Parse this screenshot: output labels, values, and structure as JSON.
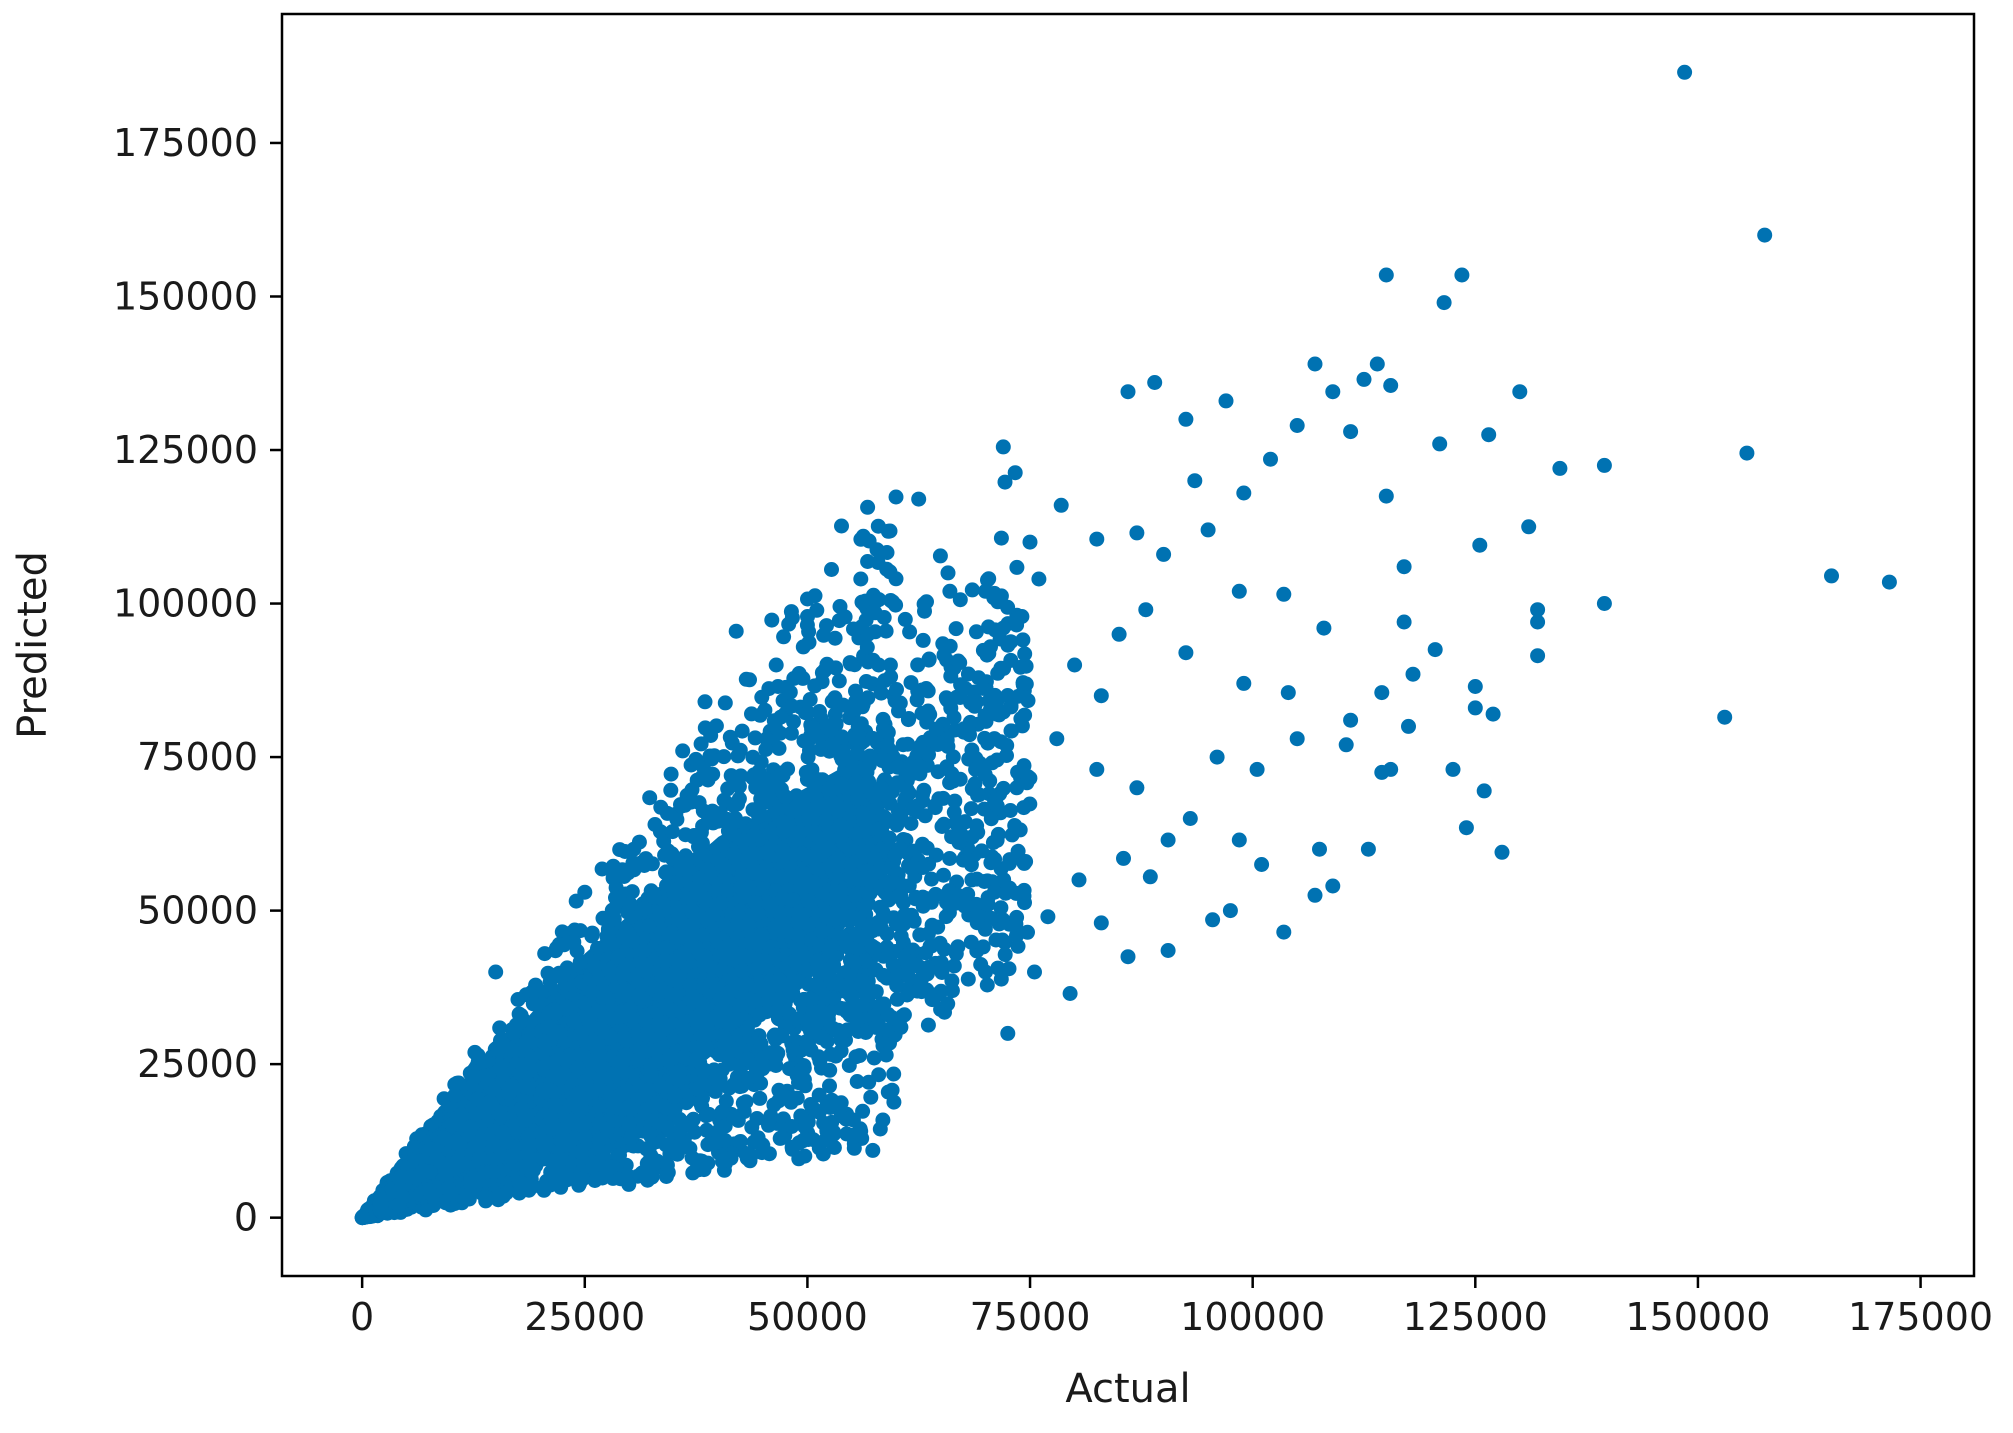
{
  "chart_data": {
    "type": "scatter",
    "title": "",
    "xlabel": "Actual",
    "ylabel": "Predicted",
    "xlim": [
      -9000,
      181000
    ],
    "ylim": [
      -9500,
      196000
    ],
    "grid": false,
    "x_ticks": [
      0,
      25000,
      50000,
      75000,
      100000,
      125000,
      150000,
      175000
    ],
    "x_tick_labels": [
      "0",
      "25000",
      "50000",
      "75000",
      "100000",
      "125000",
      "150000",
      "175000"
    ],
    "y_ticks": [
      0,
      25000,
      50000,
      75000,
      100000,
      125000,
      150000,
      175000
    ],
    "y_tick_labels": [
      "0",
      "25000",
      "50000",
      "75000",
      "100000",
      "125000",
      "150000",
      "175000"
    ],
    "series": [
      {
        "color": "#0072b2",
        "marker": "circle",
        "points": [
          [
            148500,
            186500
          ],
          [
            157500,
            160000
          ],
          [
            115000,
            153500
          ],
          [
            123500,
            153500
          ],
          [
            121500,
            149000
          ],
          [
            89000,
            136000
          ],
          [
            86000,
            134500
          ],
          [
            107000,
            139000
          ],
          [
            114000,
            139000
          ],
          [
            115500,
            135500
          ],
          [
            112500,
            136500
          ],
          [
            109000,
            134500
          ],
          [
            130000,
            134500
          ],
          [
            97000,
            133000
          ],
          [
            92500,
            130000
          ],
          [
            72000,
            125500
          ],
          [
            105000,
            129000
          ],
          [
            121000,
            126000
          ],
          [
            126500,
            127500
          ],
          [
            111000,
            128000
          ],
          [
            134500,
            122000
          ],
          [
            139500,
            122500
          ],
          [
            155500,
            124500
          ],
          [
            62500,
            117000
          ],
          [
            115000,
            117500
          ],
          [
            131000,
            112500
          ],
          [
            125500,
            109500
          ],
          [
            117000,
            106000
          ],
          [
            139500,
            100000
          ],
          [
            165000,
            104500
          ],
          [
            171500,
            103500
          ],
          [
            132000,
            99000
          ],
          [
            132000,
            97000
          ],
          [
            132000,
            91500
          ],
          [
            117000,
            97000
          ],
          [
            120500,
            92500
          ],
          [
            118000,
            88500
          ],
          [
            125000,
            86500
          ],
          [
            125000,
            83000
          ],
          [
            127000,
            82000
          ],
          [
            114500,
            85500
          ],
          [
            117500,
            80000
          ],
          [
            111000,
            81000
          ],
          [
            110500,
            77000
          ],
          [
            153000,
            81500
          ],
          [
            115500,
            73000
          ],
          [
            114500,
            72500
          ],
          [
            122500,
            73000
          ],
          [
            126000,
            69500
          ],
          [
            124000,
            63500
          ],
          [
            128000,
            59500
          ],
          [
            113000,
            60000
          ],
          [
            107500,
            60000
          ],
          [
            103500,
            46500
          ],
          [
            107000,
            52500
          ],
          [
            109000,
            54000
          ],
          [
            97500,
            50000
          ],
          [
            95500,
            48500
          ],
          [
            90500,
            43500
          ],
          [
            86000,
            42500
          ],
          [
            42000,
            95500
          ],
          [
            50000,
            96500
          ],
          [
            56000,
            104000
          ],
          [
            66000,
            102000
          ],
          [
            70000,
            102000
          ],
          [
            75000,
            110000
          ],
          [
            78500,
            116000
          ],
          [
            82500,
            110500
          ],
          [
            87000,
            111500
          ],
          [
            90000,
            108000
          ],
          [
            93500,
            120000
          ],
          [
            99000,
            118000
          ],
          [
            102000,
            123500
          ],
          [
            95000,
            112000
          ],
          [
            98500,
            102000
          ],
          [
            103500,
            101500
          ],
          [
            108000,
            96000
          ],
          [
            99000,
            87000
          ],
          [
            104000,
            85500
          ],
          [
            105000,
            78000
          ],
          [
            100500,
            73000
          ],
          [
            96000,
            75000
          ],
          [
            93000,
            65000
          ],
          [
            98500,
            61500
          ],
          [
            101000,
            57500
          ],
          [
            90500,
            61500
          ],
          [
            88500,
            55500
          ],
          [
            85500,
            58500
          ],
          [
            80500,
            55000
          ],
          [
            83000,
            48000
          ],
          [
            77000,
            49000
          ],
          [
            75500,
            40000
          ],
          [
            79500,
            36500
          ],
          [
            72500,
            30000
          ],
          [
            70000,
            40000
          ],
          [
            66500,
            41000
          ],
          [
            64000,
            35500
          ],
          [
            60500,
            31000
          ],
          [
            57500,
            26000
          ],
          [
            52500,
            24000
          ],
          [
            49000,
            22000
          ],
          [
            45000,
            25000
          ],
          [
            40000,
            22000
          ],
          [
            80000,
            90000
          ],
          [
            85000,
            95000
          ],
          [
            72000,
            96000
          ],
          [
            76000,
            104000
          ],
          [
            88000,
            99000
          ],
          [
            92500,
            92000
          ],
          [
            83000,
            85000
          ],
          [
            78000,
            78000
          ],
          [
            82500,
            73000
          ],
          [
            87000,
            70000
          ],
          [
            69000,
            84000
          ],
          [
            73500,
            70000
          ],
          [
            68500,
            62000
          ],
          [
            74500,
            58000
          ],
          [
            60000,
            86000
          ],
          [
            63000,
            94000
          ],
          [
            58000,
            90000
          ],
          [
            46500,
            90000
          ],
          [
            38500,
            84000
          ],
          [
            36000,
            76000
          ],
          [
            30500,
            60000
          ],
          [
            25000,
            53000
          ],
          [
            20500,
            43000
          ],
          [
            15000,
            40000
          ],
          [
            58000,
            47000
          ],
          [
            64000,
            52000
          ],
          [
            66500,
            66000
          ],
          [
            71000,
            53000
          ],
          [
            61000,
            42000
          ],
          [
            55000,
            36000
          ],
          [
            50000,
            32000
          ]
        ],
        "dense_regions": [
          {
            "x_min": 0,
            "x_max": 60000,
            "slope_low": 0.2,
            "slope_high": 1.9,
            "count": 2600
          },
          {
            "x_min": 2000,
            "x_max": 35000,
            "slope_low": 0.45,
            "slope_high": 1.4,
            "count": 2200
          },
          {
            "x_min": 20000,
            "x_max": 75000,
            "slope_low": 0.55,
            "slope_high": 1.45,
            "count": 1800
          }
        ]
      }
    ]
  }
}
